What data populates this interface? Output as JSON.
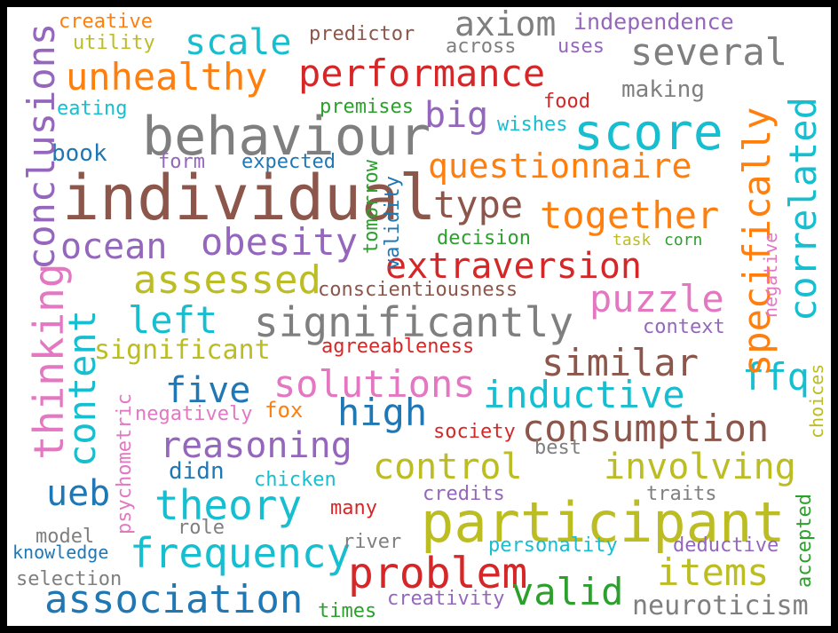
{
  "colors": {
    "blue": "#1f77b4",
    "orange": "#ff7f0e",
    "green": "#2ca02c",
    "red": "#d62728",
    "purple": "#9467bd",
    "brown": "#8c564b",
    "pink": "#e377c2",
    "gray": "#7f7f7f",
    "olive": "#bcbd22",
    "cyan": "#17becf",
    "background": "#ffffff",
    "frame": "#000000"
  },
  "words": [
    {
      "text": "creative",
      "color": "#ff7f0e"
    },
    {
      "text": "utility",
      "color": "#bcbd22"
    },
    {
      "text": "predictor",
      "color": "#8c564b"
    },
    {
      "text": "axiom",
      "color": "#7f7f7f"
    },
    {
      "text": "independence",
      "color": "#9467bd"
    },
    {
      "text": "across",
      "color": "#7f7f7f"
    },
    {
      "text": "uses",
      "color": "#9467bd"
    },
    {
      "text": "scale",
      "color": "#17becf"
    },
    {
      "text": "several",
      "color": "#7f7f7f"
    },
    {
      "text": "unhealthy",
      "color": "#ff7f0e"
    },
    {
      "text": "performance",
      "color": "#d62728"
    },
    {
      "text": "making",
      "color": "#7f7f7f"
    },
    {
      "text": "food",
      "color": "#d62728"
    },
    {
      "text": "eating",
      "color": "#17becf"
    },
    {
      "text": "premises",
      "color": "#2ca02c"
    },
    {
      "text": "big",
      "color": "#9467bd"
    },
    {
      "text": "wishes",
      "color": "#17becf"
    },
    {
      "text": "behaviour",
      "color": "#7f7f7f"
    },
    {
      "text": "score",
      "color": "#17becf"
    },
    {
      "text": "book",
      "color": "#1f77b4"
    },
    {
      "text": "form",
      "color": "#9467bd"
    },
    {
      "text": "expected",
      "color": "#1f77b4"
    },
    {
      "text": "questionnaire",
      "color": "#ff7f0e"
    },
    {
      "text": "individual",
      "color": "#8c564b"
    },
    {
      "text": "type",
      "color": "#8c564b"
    },
    {
      "text": "together",
      "color": "#ff7f0e"
    },
    {
      "text": "decision",
      "color": "#2ca02c"
    },
    {
      "text": "task",
      "color": "#bcbd22"
    },
    {
      "text": "corn",
      "color": "#2ca02c"
    },
    {
      "text": "ocean",
      "color": "#9467bd"
    },
    {
      "text": "obesity",
      "color": "#9467bd"
    },
    {
      "text": "extraversion",
      "color": "#d62728"
    },
    {
      "text": "assessed",
      "color": "#bcbd22"
    },
    {
      "text": "conscientiousness",
      "color": "#8c564b"
    },
    {
      "text": "puzzle",
      "color": "#e377c2"
    },
    {
      "text": "left",
      "color": "#17becf"
    },
    {
      "text": "significantly",
      "color": "#7f7f7f"
    },
    {
      "text": "context",
      "color": "#9467bd"
    },
    {
      "text": "significant",
      "color": "#bcbd22"
    },
    {
      "text": "agreeableness",
      "color": "#d62728"
    },
    {
      "text": "similar",
      "color": "#8c564b"
    },
    {
      "text": "five",
      "color": "#1f77b4"
    },
    {
      "text": "solutions",
      "color": "#e377c2"
    },
    {
      "text": "inductive",
      "color": "#17becf"
    },
    {
      "text": "ffq",
      "color": "#17becf"
    },
    {
      "text": "negatively",
      "color": "#e377c2"
    },
    {
      "text": "fox",
      "color": "#ff7f0e"
    },
    {
      "text": "high",
      "color": "#1f77b4"
    },
    {
      "text": "consumption",
      "color": "#8c564b"
    },
    {
      "text": "society",
      "color": "#d62728"
    },
    {
      "text": "reasoning",
      "color": "#9467bd"
    },
    {
      "text": "best",
      "color": "#7f7f7f"
    },
    {
      "text": "control",
      "color": "#bcbd22"
    },
    {
      "text": "involving",
      "color": "#bcbd22"
    },
    {
      "text": "ueb",
      "color": "#1f77b4"
    },
    {
      "text": "didn",
      "color": "#1f77b4"
    },
    {
      "text": "chicken",
      "color": "#17becf"
    },
    {
      "text": "theory",
      "color": "#17becf"
    },
    {
      "text": "credits",
      "color": "#9467bd"
    },
    {
      "text": "traits",
      "color": "#7f7f7f"
    },
    {
      "text": "participant",
      "color": "#bcbd22"
    },
    {
      "text": "many",
      "color": "#d62728"
    },
    {
      "text": "model",
      "color": "#7f7f7f"
    },
    {
      "text": "role",
      "color": "#7f7f7f"
    },
    {
      "text": "frequency",
      "color": "#17becf"
    },
    {
      "text": "river",
      "color": "#7f7f7f"
    },
    {
      "text": "personality",
      "color": "#17becf"
    },
    {
      "text": "deductive",
      "color": "#9467bd"
    },
    {
      "text": "knowledge",
      "color": "#1f77b4"
    },
    {
      "text": "problem",
      "color": "#d62728"
    },
    {
      "text": "items",
      "color": "#bcbd22"
    },
    {
      "text": "selection",
      "color": "#7f7f7f"
    },
    {
      "text": "association",
      "color": "#1f77b4"
    },
    {
      "text": "valid",
      "color": "#2ca02c"
    },
    {
      "text": "creativity",
      "color": "#9467bd"
    },
    {
      "text": "times",
      "color": "#2ca02c"
    },
    {
      "text": "neuroticism",
      "color": "#7f7f7f"
    },
    {
      "text": "conclusions",
      "color": "#9467bd"
    },
    {
      "text": "thinking",
      "color": "#e377c2"
    },
    {
      "text": "content",
      "color": "#17becf"
    },
    {
      "text": "psychometric",
      "color": "#e377c2"
    },
    {
      "text": "tomorrow",
      "color": "#2ca02c"
    },
    {
      "text": "validity",
      "color": "#1f77b4"
    },
    {
      "text": "specifically",
      "color": "#ff7f0e"
    },
    {
      "text": "correlated",
      "color": "#17becf"
    },
    {
      "text": "negative",
      "color": "#e377c2"
    },
    {
      "text": "choices",
      "color": "#bcbd22"
    },
    {
      "text": "accepted",
      "color": "#2ca02c"
    }
  ]
}
